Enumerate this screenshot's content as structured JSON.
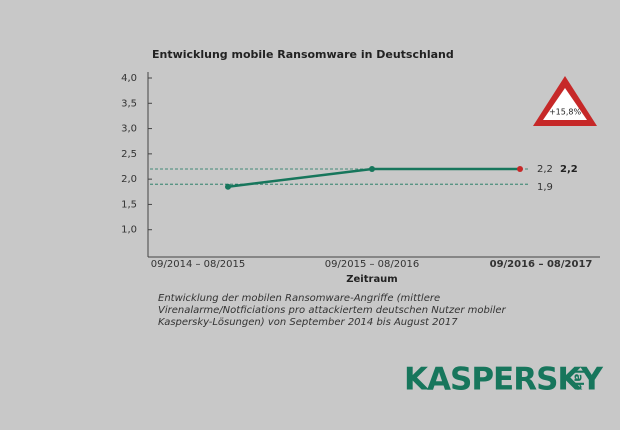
{
  "chart_data": {
    "type": "line",
    "title": "Entwicklung mobile Ransomware in Deutschland",
    "xlabel": "Zeitraum",
    "categories": [
      "09/2014 – 08/2015",
      "09/2015 – 08/2016",
      "09/2016 – 08/2017"
    ],
    "series": [
      {
        "color": "#17765c",
        "values": [
          1.85,
          2.2,
          2.2
        ],
        "value_labels": [
          null,
          null,
          "2,2"
        ],
        "end_color": "#c62828"
      }
    ],
    "ylim": [
      0.5,
      4.0
    ],
    "yticks": [
      {
        "value": 1.0,
        "label": "1,0"
      },
      {
        "value": 1.5,
        "label": "1,5"
      },
      {
        "value": 2.0,
        "label": "2,0"
      },
      {
        "value": 2.5,
        "label": "2,5"
      },
      {
        "value": 3.0,
        "label": "3,0"
      },
      {
        "value": 3.5,
        "label": "3,5"
      },
      {
        "value": 4.0,
        "label": "4,0"
      }
    ],
    "reference_lines": [
      {
        "value": 2.2,
        "label": "2,2"
      },
      {
        "value": 1.9,
        "label": "1,9"
      }
    ],
    "annotation": "+15,8%",
    "caption": [
      "Entwicklung der mobilen Ransomware-Angriffe (mittlere",
      "Virenalarme/Notficiations pro attackiertem deutschen Nutzer mobiler",
      "Kaspersky-Lösungen) von September 2014 bis August 2017"
    ],
    "logo": {
      "name": "KASPERSKY",
      "suffix": "lab"
    }
  }
}
